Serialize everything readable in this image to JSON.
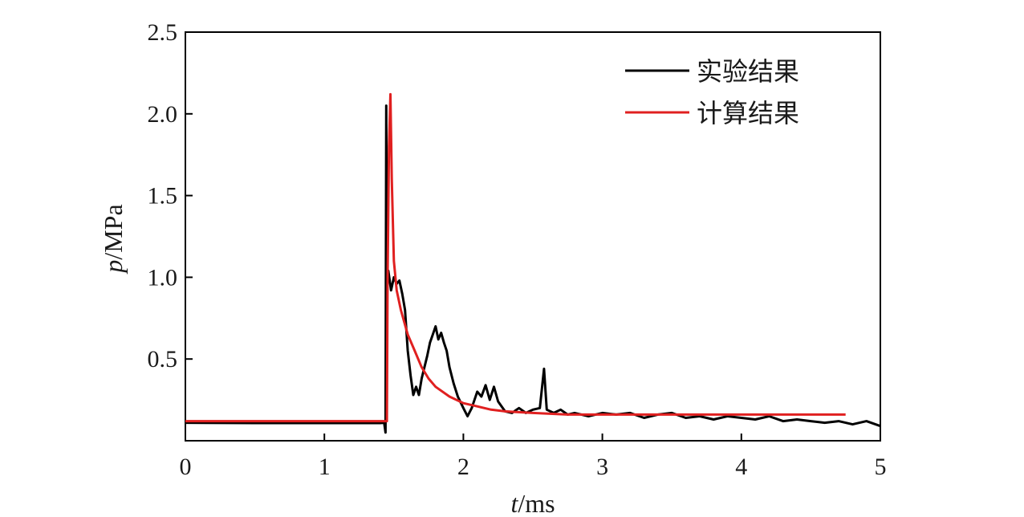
{
  "chart_data": {
    "type": "line",
    "title": "",
    "xlabel": {
      "var": "t",
      "unit": "/ms"
    },
    "ylabel": {
      "var": "p",
      "unit": "/MPa"
    },
    "xlim": [
      0,
      5
    ],
    "ylim": [
      0,
      2.5
    ],
    "x_ticks": [
      {
        "value": 0,
        "label": "0"
      },
      {
        "value": 1,
        "label": "1"
      },
      {
        "value": 2,
        "label": "2"
      },
      {
        "value": 3,
        "label": "3"
      },
      {
        "value": 4,
        "label": "4"
      },
      {
        "value": 5,
        "label": "5"
      }
    ],
    "y_ticks": [
      {
        "value": 0.5,
        "label": "0.5"
      },
      {
        "value": 1.0,
        "label": "1.0"
      },
      {
        "value": 1.5,
        "label": "1.5"
      },
      {
        "value": 2.0,
        "label": "2.0"
      },
      {
        "value": 2.5,
        "label": "2.5"
      }
    ],
    "grid": false,
    "legend_position": "top-right",
    "series": [
      {
        "name": "实验结果",
        "color": "#000000",
        "points": [
          [
            0.0,
            0.11
          ],
          [
            0.5,
            0.108
          ],
          [
            1.0,
            0.108
          ],
          [
            1.4,
            0.108
          ],
          [
            1.43,
            0.11
          ],
          [
            1.44,
            0.05
          ],
          [
            1.445,
            2.05
          ],
          [
            1.45,
            0.95
          ],
          [
            1.46,
            1.04
          ],
          [
            1.48,
            0.92
          ],
          [
            1.5,
            1.0
          ],
          [
            1.52,
            0.96
          ],
          [
            1.54,
            0.98
          ],
          [
            1.56,
            0.9
          ],
          [
            1.58,
            0.8
          ],
          [
            1.6,
            0.55
          ],
          [
            1.62,
            0.4
          ],
          [
            1.64,
            0.28
          ],
          [
            1.66,
            0.33
          ],
          [
            1.68,
            0.28
          ],
          [
            1.7,
            0.38
          ],
          [
            1.72,
            0.45
          ],
          [
            1.74,
            0.52
          ],
          [
            1.76,
            0.6
          ],
          [
            1.78,
            0.65
          ],
          [
            1.8,
            0.7
          ],
          [
            1.82,
            0.62
          ],
          [
            1.84,
            0.66
          ],
          [
            1.86,
            0.6
          ],
          [
            1.88,
            0.55
          ],
          [
            1.9,
            0.45
          ],
          [
            1.93,
            0.35
          ],
          [
            1.96,
            0.27
          ],
          [
            2.0,
            0.2
          ],
          [
            2.03,
            0.15
          ],
          [
            2.06,
            0.2
          ],
          [
            2.1,
            0.3
          ],
          [
            2.13,
            0.27
          ],
          [
            2.16,
            0.34
          ],
          [
            2.19,
            0.25
          ],
          [
            2.22,
            0.33
          ],
          [
            2.25,
            0.24
          ],
          [
            2.3,
            0.18
          ],
          [
            2.35,
            0.17
          ],
          [
            2.4,
            0.2
          ],
          [
            2.45,
            0.17
          ],
          [
            2.5,
            0.19
          ],
          [
            2.55,
            0.2
          ],
          [
            2.58,
            0.44
          ],
          [
            2.6,
            0.19
          ],
          [
            2.65,
            0.17
          ],
          [
            2.7,
            0.19
          ],
          [
            2.75,
            0.16
          ],
          [
            2.8,
            0.17
          ],
          [
            2.9,
            0.15
          ],
          [
            3.0,
            0.17
          ],
          [
            3.1,
            0.16
          ],
          [
            3.2,
            0.17
          ],
          [
            3.3,
            0.14
          ],
          [
            3.4,
            0.16
          ],
          [
            3.5,
            0.17
          ],
          [
            3.6,
            0.14
          ],
          [
            3.7,
            0.15
          ],
          [
            3.8,
            0.13
          ],
          [
            3.9,
            0.15
          ],
          [
            4.0,
            0.14
          ],
          [
            4.1,
            0.13
          ],
          [
            4.2,
            0.15
          ],
          [
            4.3,
            0.12
          ],
          [
            4.4,
            0.13
          ],
          [
            4.5,
            0.12
          ],
          [
            4.6,
            0.11
          ],
          [
            4.7,
            0.12
          ],
          [
            4.8,
            0.1
          ],
          [
            4.9,
            0.12
          ],
          [
            5.0,
            0.09
          ]
        ]
      },
      {
        "name": "计算结果",
        "color": "#e02020",
        "points": [
          [
            0.0,
            0.12
          ],
          [
            1.0,
            0.12
          ],
          [
            1.45,
            0.12
          ],
          [
            1.455,
            1.0
          ],
          [
            1.465,
            1.8
          ],
          [
            1.475,
            2.12
          ],
          [
            1.485,
            1.6
          ],
          [
            1.5,
            1.1
          ],
          [
            1.52,
            0.92
          ],
          [
            1.55,
            0.8
          ],
          [
            1.6,
            0.65
          ],
          [
            1.65,
            0.55
          ],
          [
            1.7,
            0.45
          ],
          [
            1.75,
            0.38
          ],
          [
            1.8,
            0.33
          ],
          [
            1.9,
            0.27
          ],
          [
            2.0,
            0.23
          ],
          [
            2.1,
            0.21
          ],
          [
            2.2,
            0.19
          ],
          [
            2.3,
            0.18
          ],
          [
            2.5,
            0.17
          ],
          [
            2.75,
            0.16
          ],
          [
            3.0,
            0.16
          ],
          [
            3.5,
            0.16
          ],
          [
            4.0,
            0.16
          ],
          [
            4.5,
            0.16
          ],
          [
            4.75,
            0.16
          ]
        ]
      }
    ]
  }
}
